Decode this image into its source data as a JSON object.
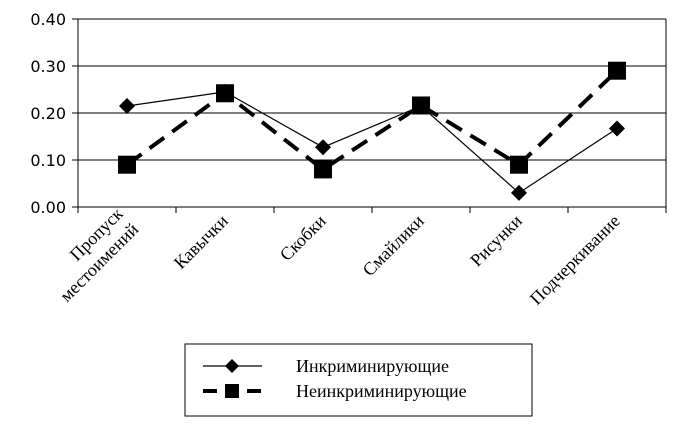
{
  "chart_data": {
    "type": "line",
    "title": "",
    "xlabel": "",
    "ylabel": "",
    "ylim": [
      0,
      0.4
    ],
    "yticks": [
      "0.00",
      "0.10",
      "0.20",
      "0.30",
      "0.40"
    ],
    "grid": true,
    "legend_position": "bottom",
    "categories": [
      [
        "Пропуск",
        "местоимений"
      ],
      [
        "Кавычки"
      ],
      [
        "Скобки"
      ],
      [
        "Смайлики"
      ],
      [
        "Рисунки"
      ],
      [
        "Подчеркивание"
      ]
    ],
    "series": [
      {
        "name": "Инкриминирующие",
        "marker": "diamond",
        "line": "solid",
        "values": [
          0.215,
          0.245,
          0.127,
          0.215,
          0.03,
          0.167
        ]
      },
      {
        "name": "Неинкриминирующие",
        "marker": "square",
        "line": "dashed",
        "values": [
          0.09,
          0.242,
          0.08,
          0.216,
          0.09,
          0.29
        ]
      }
    ]
  }
}
